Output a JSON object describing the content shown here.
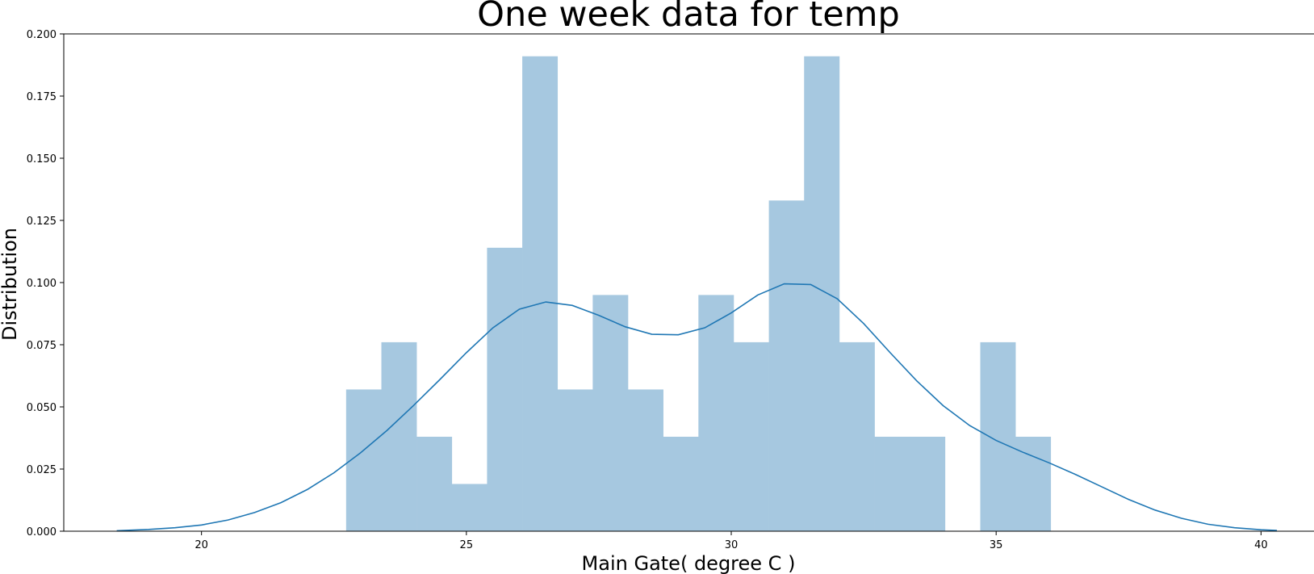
{
  "chart_data": {
    "type": "bar",
    "title": "One week data for temp",
    "xlabel": "Main Gate( degree C )",
    "ylabel": "Distribution",
    "xlim": [
      17.4,
      41.0
    ],
    "ylim": [
      0,
      0.2
    ],
    "xticks": [
      20,
      25,
      30,
      35,
      40
    ],
    "xtick_labels": [
      "20",
      "25",
      "30",
      "35",
      "40"
    ],
    "yticks": [
      0,
      0.025,
      0.05,
      0.075,
      0.1,
      0.125,
      0.15,
      0.175,
      0.2
    ],
    "ytick_labels": [
      "0.000",
      "0.025",
      "0.050",
      "0.075",
      "0.100",
      "0.125",
      "0.150",
      "0.175",
      "0.200"
    ],
    "grid": false,
    "histogram": {
      "bin_width": 0.665,
      "bin_starts": [
        22.73,
        23.395,
        24.06,
        24.725,
        25.39,
        26.055,
        26.72,
        27.385,
        28.05,
        28.715,
        29.38,
        30.045,
        30.71,
        31.375,
        32.04,
        32.705,
        33.37,
        34.035,
        34.7,
        35.365
      ],
      "values": [
        0.057,
        0.076,
        0.038,
        0.019,
        0.114,
        0.191,
        0.057,
        0.095,
        0.057,
        0.038,
        0.095,
        0.076,
        0.133,
        0.191,
        0.076,
        0.038,
        0.038,
        0.0,
        0.076,
        0.038
      ],
      "color": "#a6c8e0"
    },
    "kde": {
      "color": "#1f77b4",
      "x": [
        18.4,
        19.0,
        19.5,
        20.0,
        20.5,
        21.0,
        21.5,
        22.0,
        22.5,
        23.0,
        23.5,
        24.0,
        24.5,
        25.0,
        25.5,
        26.0,
        26.5,
        27.0,
        27.5,
        28.0,
        28.5,
        29.0,
        29.5,
        30.0,
        30.5,
        31.0,
        31.5,
        32.0,
        32.5,
        33.0,
        33.5,
        34.0,
        34.5,
        35.0,
        35.5,
        36.0,
        36.5,
        37.0,
        37.5,
        38.0,
        38.5,
        39.0,
        39.5,
        40.0,
        40.3
      ],
      "y": [
        0.0002,
        0.0007,
        0.0014,
        0.0025,
        0.0045,
        0.0075,
        0.0115,
        0.0168,
        0.0235,
        0.0315,
        0.0405,
        0.0505,
        0.061,
        0.0718,
        0.0818,
        0.0893,
        0.0922,
        0.0908,
        0.0868,
        0.0822,
        0.0792,
        0.079,
        0.0818,
        0.0878,
        0.095,
        0.0995,
        0.0992,
        0.0935,
        0.0835,
        0.0718,
        0.0605,
        0.0505,
        0.0425,
        0.0365,
        0.0318,
        0.0275,
        0.0228,
        0.0178,
        0.0128,
        0.0085,
        0.0052,
        0.0028,
        0.0014,
        0.0006,
        0.0003
      ]
    }
  }
}
